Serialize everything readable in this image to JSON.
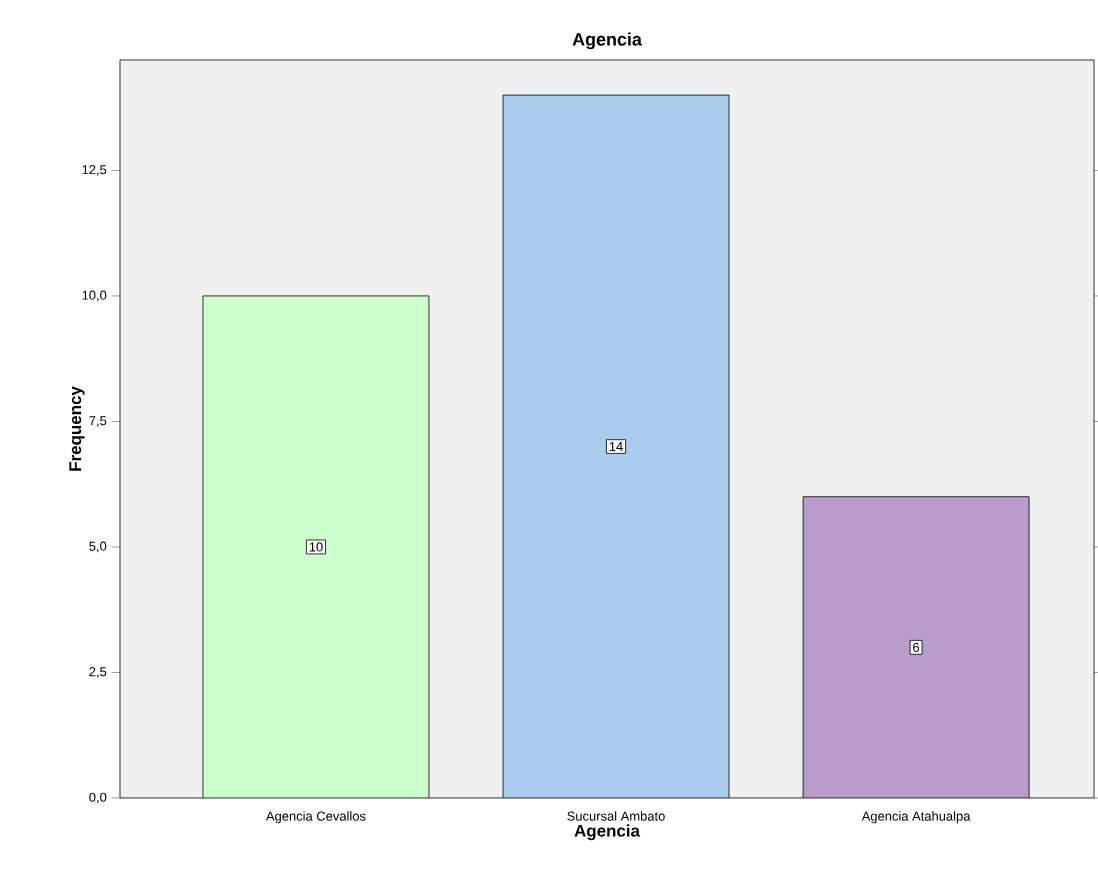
{
  "chart_data": {
    "type": "bar",
    "title": "Agencia",
    "xlabel": "Agencia",
    "ylabel": "Frequency",
    "categories": [
      "Agencia Cevallos",
      "Sucursal Ambato",
      "Agencia Atahualpa"
    ],
    "values": [
      10,
      14,
      6
    ],
    "colors": [
      "#ccffcc",
      "#aacdee",
      "#b89ccc"
    ],
    "ylim": [
      0,
      14.7
    ],
    "yticks": [
      {
        "value": 0,
        "label": "0,0"
      },
      {
        "value": 2.5,
        "label": "2,5"
      },
      {
        "value": 5,
        "label": "5,0"
      },
      {
        "value": 7.5,
        "label": "7,5"
      },
      {
        "value": 10,
        "label": "10,0"
      },
      {
        "value": 12.5,
        "label": "12,5"
      }
    ],
    "data_labels": true
  }
}
